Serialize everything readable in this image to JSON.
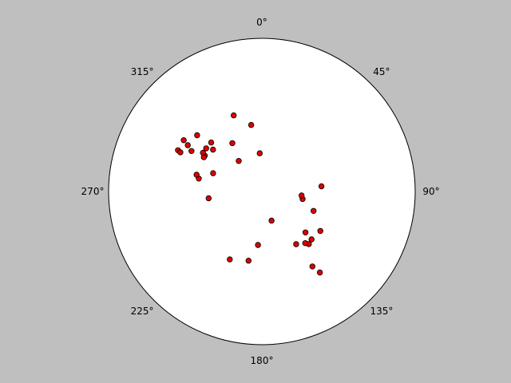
{
  "chart_data": {
    "type": "scatter",
    "projection": "polar-stereonet",
    "title": "",
    "xlabel": "",
    "ylabel": "",
    "grid": false,
    "tick_labels": [
      "0°",
      "45°",
      "90°",
      "135°",
      "180°",
      "225°",
      "270°",
      "315°"
    ],
    "tick_angles_deg": [
      0,
      45,
      90,
      135,
      180,
      225,
      270,
      315
    ],
    "marker_color": "#dd0000",
    "marker_edge_color": "#000000",
    "background_color": "#bfbfbf",
    "plot_background_color": "#ffffff",
    "series": [
      {
        "points": [
          {
            "azimuth": 339.7,
            "radius": 0.53
          },
          {
            "azimuth": 350.9,
            "radius": 0.44
          },
          {
            "azimuth": 311.0,
            "radius": 0.56
          },
          {
            "azimuth": 356.8,
            "radius": 0.25
          },
          {
            "azimuth": 314.0,
            "radius": 0.46
          },
          {
            "azimuth": 302.0,
            "radius": 0.57
          },
          {
            "azimuth": 307.8,
            "radius": 0.46
          },
          {
            "azimuth": 310.6,
            "radius": 0.42
          },
          {
            "azimuth": 302.2,
            "radius": 0.44
          },
          {
            "azimuth": 296.2,
            "radius": 0.61
          },
          {
            "azimuth": 295.7,
            "radius": 0.59
          },
          {
            "azimuth": 290.5,
            "radius": 0.34
          },
          {
            "azimuth": 303.3,
            "radius": 0.61
          },
          {
            "azimuth": 322.9,
            "radius": 0.25
          },
          {
            "azimuth": 300.6,
            "radius": 0.44
          },
          {
            "azimuth": 328.6,
            "radius": 0.37
          },
          {
            "azimuth": 281.6,
            "radius": 0.42
          },
          {
            "azimuth": 284.4,
            "radius": 0.44
          },
          {
            "azimuth": 262.7,
            "radius": 0.35
          },
          {
            "azimuth": 299.9,
            "radius": 0.53
          },
          {
            "azimuth": 303.3,
            "radius": 0.46
          },
          {
            "azimuth": 100.5,
            "radius": 0.27
          },
          {
            "azimuth": 124.0,
            "radius": 0.46
          },
          {
            "azimuth": 146.0,
            "radius": 0.59
          },
          {
            "azimuth": 85.0,
            "radius": 0.39
          },
          {
            "azimuth": 144.4,
            "radius": 0.65
          },
          {
            "azimuth": 110.6,
            "radius": 0.36
          },
          {
            "azimuth": 134.0,
            "radius": 0.45
          },
          {
            "azimuth": 95.7,
            "radius": 0.26
          },
          {
            "azimuth": 147.0,
            "radius": 0.41
          },
          {
            "azimuth": 190.9,
            "radius": 0.46
          },
          {
            "azimuth": 161.7,
            "radius": 0.2
          },
          {
            "azimuth": 138.3,
            "radius": 0.46
          },
          {
            "azimuth": 140.0,
            "radius": 0.44
          },
          {
            "azimuth": 133.2,
            "radius": 0.39
          },
          {
            "azimuth": 205.3,
            "radius": 0.49
          },
          {
            "azimuth": 184.2,
            "radius": 0.35
          }
        ]
      }
    ]
  }
}
